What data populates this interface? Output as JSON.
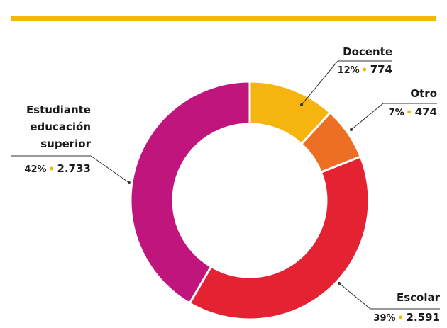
{
  "chart_data": {
    "type": "donut",
    "categories": [
      "Docente",
      "Otro",
      "Escolar",
      "Estudiante educación superior"
    ],
    "values": [
      774,
      474,
      2591,
      2733
    ],
    "value_labels": [
      "774",
      "474",
      "2.591",
      "2.733"
    ],
    "percentages": [
      12,
      7,
      39,
      42
    ],
    "percentage_labels": [
      "12%",
      "7%",
      "39%",
      "42%"
    ],
    "colors": [
      "#f6b40e",
      "#ec6f24",
      "#e42231",
      "#c0157c"
    ],
    "accent_color": "#f5b800"
  }
}
